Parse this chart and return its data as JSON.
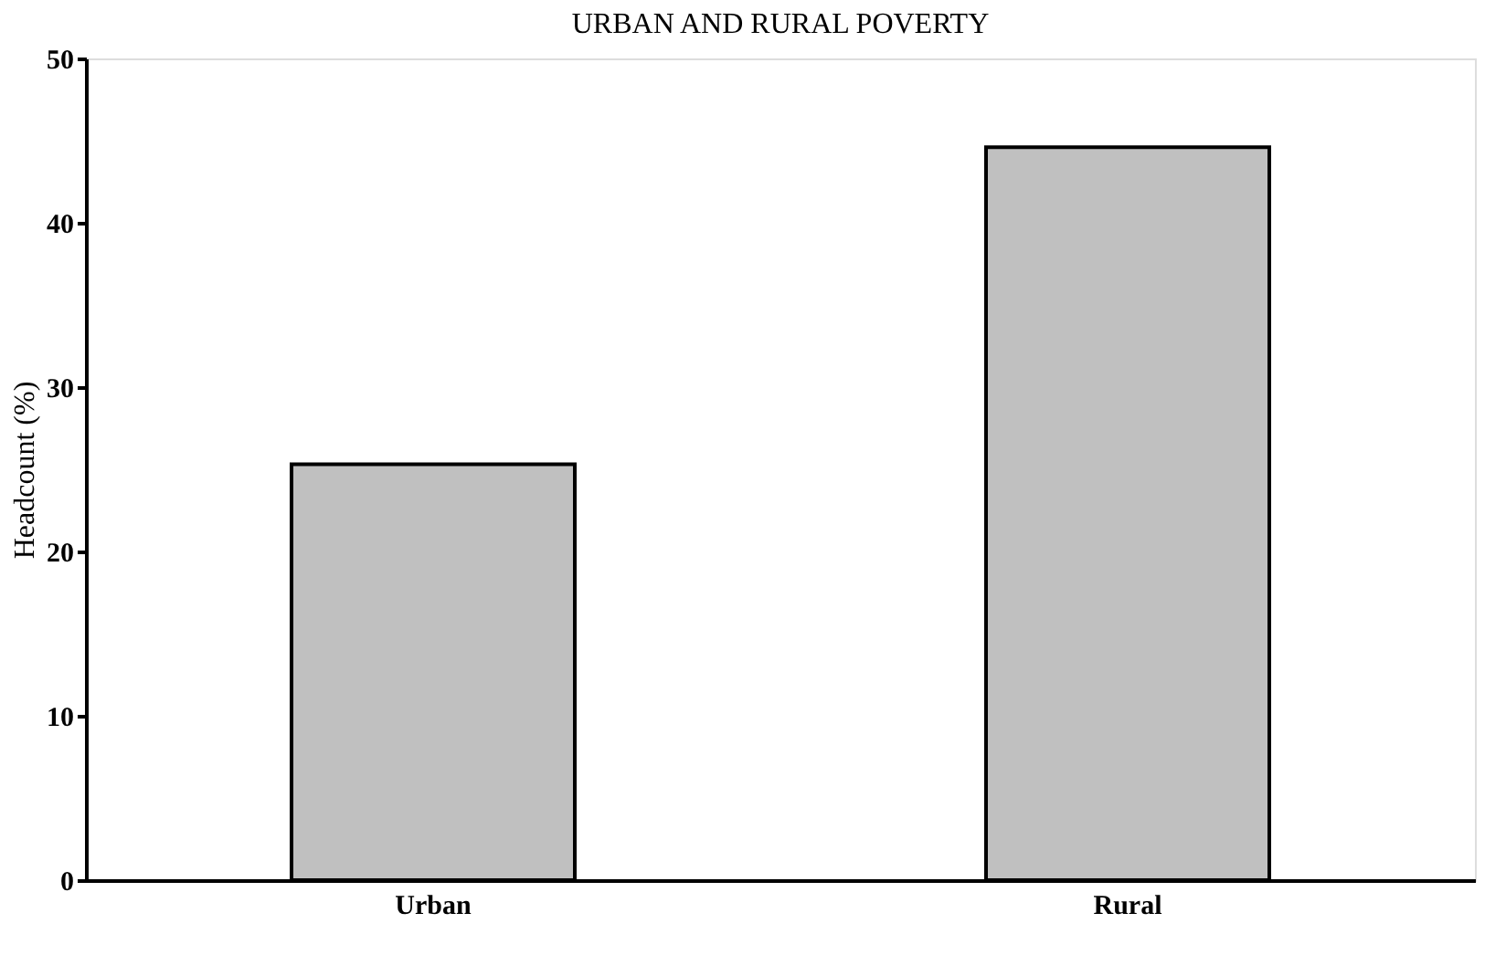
{
  "chart_data": {
    "type": "bar",
    "title": "URBAN AND RURAL POVERTY",
    "ylabel": "Headcount (%)",
    "categories": [
      "Urban",
      "Rural"
    ],
    "values": [
      25.3,
      44.6
    ],
    "color": "#c0c0c0",
    "ylim": [
      0,
      50
    ],
    "yticks": [
      0,
      10,
      20,
      30,
      40,
      50
    ],
    "grid": false
  }
}
